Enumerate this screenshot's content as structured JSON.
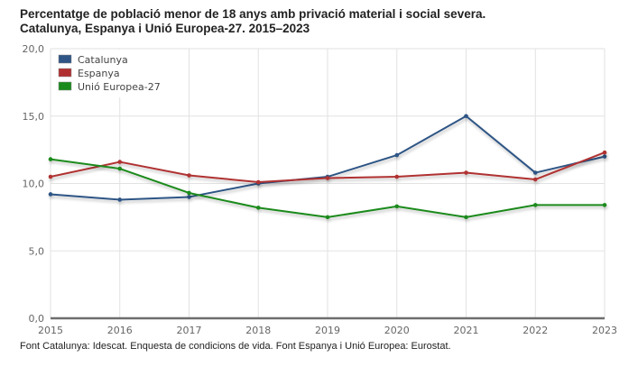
{
  "title": {
    "line1": "Percentatge de població menor de 18 anys amb privació material i social severa.",
    "line2": "Catalunya, Espanya i Unió Europea-27. 2015–2023"
  },
  "source": "Font Catalunya: Idescat. Enquesta de condicions de vida. Font Espanya i Unió Europea: Eurostat.",
  "chart_data": {
    "type": "line",
    "title": "Percentatge de població menor de 18 anys amb privació material i social severa. Catalunya, Espanya i Unió Europea-27. 2015–2023",
    "xlabel": "",
    "ylabel": "",
    "x": [
      "2015",
      "2016",
      "2017",
      "2018",
      "2019",
      "2020",
      "2021",
      "2022",
      "2023"
    ],
    "ylim": [
      0,
      20
    ],
    "yticks": [
      "0,0",
      "5,0",
      "10,0",
      "15,0",
      "20,0"
    ],
    "ytick_values": [
      0,
      5,
      10,
      15,
      20
    ],
    "grid": true,
    "legend_position": "top-left",
    "series": [
      {
        "name": "Catalunya",
        "color": "#2e5585",
        "values": [
          9.2,
          8.8,
          9.0,
          10.0,
          10.5,
          12.1,
          15.0,
          10.8,
          12.0
        ]
      },
      {
        "name": "Espanya",
        "color": "#b03030",
        "values": [
          10.5,
          11.6,
          10.6,
          10.1,
          10.4,
          10.5,
          10.8,
          10.3,
          12.3
        ]
      },
      {
        "name": "Unió Europea-27",
        "color": "#1a8a1a",
        "values": [
          11.8,
          11.1,
          9.3,
          8.2,
          7.5,
          8.3,
          7.5,
          8.4,
          8.4
        ]
      }
    ]
  }
}
